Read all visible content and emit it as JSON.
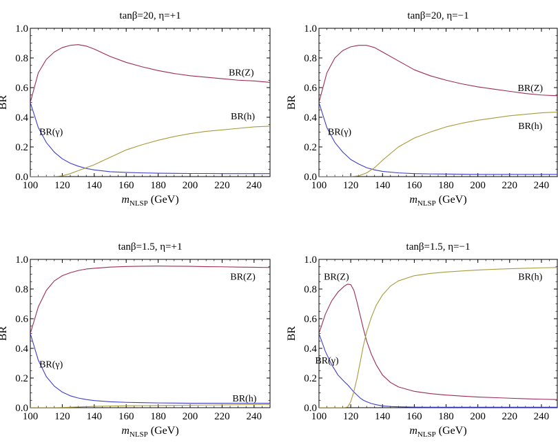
{
  "chart_data": [
    {
      "type": "line",
      "title": "tanβ=20,  η=+1",
      "ylabel": "BR",
      "xlabel_main": "m",
      "xlabel_sub": "NLSP",
      "xlabel_unit": " (GeV)",
      "xlim": [
        100,
        250
      ],
      "ylim": [
        0,
        1
      ],
      "xticks": [
        "100",
        "120",
        "140",
        "160",
        "180",
        "200",
        "220",
        "240"
      ],
      "yticks": [
        "0.0",
        "0.2",
        "0.4",
        "0.6",
        "0.8",
        "1.0"
      ],
      "x": [
        100,
        105,
        110,
        115,
        120,
        125,
        130,
        135,
        140,
        150,
        160,
        170,
        180,
        190,
        200,
        210,
        220,
        230,
        240,
        250
      ],
      "series": [
        {
          "name": "BR(Z)",
          "color": "#9c2a55",
          "values": [
            0.5,
            0.7,
            0.79,
            0.84,
            0.87,
            0.885,
            0.89,
            0.88,
            0.86,
            0.81,
            0.77,
            0.74,
            0.715,
            0.695,
            0.68,
            0.67,
            0.66,
            0.65,
            0.645,
            0.635
          ]
        },
        {
          "name": "BR(γ)",
          "color": "#3d3dc8",
          "values": [
            0.5,
            0.33,
            0.23,
            0.165,
            0.12,
            0.09,
            0.07,
            0.055,
            0.045,
            0.033,
            0.028,
            0.025,
            0.023,
            0.022,
            0.021,
            0.021,
            0.02,
            0.02,
            0.02,
            0.02
          ]
        },
        {
          "name": "BR(h)",
          "color": "#a89a3a",
          "values": [
            0.0,
            0.0,
            0.0,
            0.0,
            0.005,
            0.02,
            0.04,
            0.06,
            0.08,
            0.13,
            0.18,
            0.215,
            0.245,
            0.27,
            0.29,
            0.305,
            0.315,
            0.325,
            0.335,
            0.34
          ]
        }
      ],
      "annotations": [
        {
          "label": "BR(Z)",
          "x": 232,
          "y": 0.705
        },
        {
          "label": "BR(γ)",
          "x": 113,
          "y": 0.305
        },
        {
          "label": "BR(h)",
          "x": 233,
          "y": 0.41
        }
      ]
    },
    {
      "type": "line",
      "title": "tanβ=20,  η=−1",
      "ylabel": "BR",
      "xlabel_main": "m",
      "xlabel_sub": "NLSP",
      "xlabel_unit": " (GeV)",
      "xlim": [
        100,
        250
      ],
      "ylim": [
        0,
        1
      ],
      "xticks": [
        "100",
        "120",
        "140",
        "160",
        "180",
        "200",
        "220",
        "240"
      ],
      "yticks": [
        "0.0",
        "0.2",
        "0.4",
        "0.6",
        "0.8",
        "1.0"
      ],
      "x": [
        100,
        105,
        110,
        115,
        120,
        125,
        130,
        135,
        140,
        150,
        160,
        170,
        180,
        190,
        200,
        210,
        220,
        230,
        240,
        250
      ],
      "series": [
        {
          "name": "BR(Z)",
          "color": "#9c2a55",
          "values": [
            0.5,
            0.7,
            0.8,
            0.85,
            0.875,
            0.885,
            0.885,
            0.87,
            0.84,
            0.78,
            0.72,
            0.68,
            0.65,
            0.625,
            0.605,
            0.59,
            0.575,
            0.56,
            0.55,
            0.545
          ]
        },
        {
          "name": "BR(γ)",
          "color": "#3d3dc8",
          "values": [
            0.5,
            0.33,
            0.23,
            0.165,
            0.115,
            0.085,
            0.06,
            0.045,
            0.035,
            0.025,
            0.02,
            0.018,
            0.017,
            0.016,
            0.015,
            0.015,
            0.015,
            0.015,
            0.015,
            0.015
          ]
        },
        {
          "name": "BR(h)",
          "color": "#a89a3a",
          "values": [
            0.0,
            0.0,
            0.0,
            0.0,
            0.0,
            0.005,
            0.025,
            0.06,
            0.11,
            0.2,
            0.26,
            0.3,
            0.335,
            0.36,
            0.38,
            0.395,
            0.41,
            0.42,
            0.43,
            0.435
          ]
        }
      ],
      "annotations": [
        {
          "label": "BR(Z)",
          "x": 233,
          "y": 0.6
        },
        {
          "label": "BR(γ)",
          "x": 113,
          "y": 0.305
        },
        {
          "label": "BR(h)",
          "x": 233,
          "y": 0.345
        }
      ]
    },
    {
      "type": "line",
      "title": "tanβ=1.5,  η=+1",
      "ylabel": "BR",
      "xlabel_main": "m",
      "xlabel_sub": "NLSP",
      "xlabel_unit": " (GeV)",
      "xlim": [
        100,
        250
      ],
      "ylim": [
        0,
        1
      ],
      "xticks": [
        "100",
        "120",
        "140",
        "160",
        "180",
        "200",
        "220",
        "240"
      ],
      "yticks": [
        "0.0",
        "0.2",
        "0.4",
        "0.6",
        "0.8",
        "1.0"
      ],
      "x": [
        100,
        105,
        110,
        115,
        120,
        125,
        130,
        135,
        140,
        150,
        160,
        170,
        180,
        190,
        200,
        210,
        220,
        230,
        240,
        250
      ],
      "series": [
        {
          "name": "BR(Z)",
          "color": "#9c2a55",
          "values": [
            0.5,
            0.68,
            0.79,
            0.855,
            0.89,
            0.91,
            0.925,
            0.935,
            0.94,
            0.948,
            0.952,
            0.954,
            0.955,
            0.954,
            0.953,
            0.951,
            0.95,
            0.948,
            0.947,
            0.945
          ]
        },
        {
          "name": "BR(γ)",
          "color": "#3d3dc8",
          "values": [
            0.5,
            0.32,
            0.21,
            0.145,
            0.105,
            0.08,
            0.065,
            0.055,
            0.048,
            0.04,
            0.036,
            0.034,
            0.032,
            0.031,
            0.03,
            0.03,
            0.03,
            0.03,
            0.03,
            0.03
          ]
        },
        {
          "name": "BR(h)",
          "color": "#a89a3a",
          "values": [
            0.0,
            0.0,
            0.0,
            0.0,
            0.001,
            0.003,
            0.005,
            0.007,
            0.009,
            0.011,
            0.013,
            0.014,
            0.015,
            0.016,
            0.017,
            0.018,
            0.019,
            0.02,
            0.021,
            0.022
          ]
        }
      ],
      "annotations": [
        {
          "label": "BR(Z)",
          "x": 233,
          "y": 0.885
        },
        {
          "label": "BR(γ)",
          "x": 113,
          "y": 0.295
        },
        {
          "label": "BR(h)",
          "x": 234,
          "y": 0.065
        }
      ]
    },
    {
      "type": "line",
      "title": "tanβ=1.5,  η=−1",
      "ylabel": "BR",
      "xlabel_main": "m",
      "xlabel_sub": "NLSP",
      "xlabel_unit": " (GeV)",
      "xlim": [
        100,
        250
      ],
      "ylim": [
        0,
        1
      ],
      "xticks": [
        "100",
        "120",
        "140",
        "160",
        "180",
        "200",
        "220",
        "240"
      ],
      "yticks": [
        "0.0",
        "0.2",
        "0.4",
        "0.6",
        "0.8",
        "1.0"
      ],
      "x": [
        100,
        104,
        108,
        112,
        116,
        118,
        120,
        122,
        124,
        126,
        128,
        130,
        133,
        136,
        140,
        145,
        150,
        160,
        170,
        180,
        190,
        200,
        210,
        220,
        230,
        240,
        250
      ],
      "series": [
        {
          "name": "BR(Z)",
          "color": "#9c2a55",
          "values": [
            0.5,
            0.63,
            0.72,
            0.78,
            0.82,
            0.833,
            0.83,
            0.79,
            0.71,
            0.62,
            0.53,
            0.45,
            0.36,
            0.29,
            0.22,
            0.17,
            0.14,
            0.11,
            0.095,
            0.085,
            0.078,
            0.072,
            0.068,
            0.064,
            0.06,
            0.057,
            0.055
          ]
        },
        {
          "name": "BR(γ)",
          "color": "#3d3dc8",
          "values": [
            0.5,
            0.38,
            0.29,
            0.22,
            0.175,
            0.155,
            0.13,
            0.105,
            0.085,
            0.065,
            0.05,
            0.04,
            0.028,
            0.02,
            0.012,
            0.008,
            0.006,
            0.004,
            0.003,
            0.003,
            0.003,
            0.003,
            0.003,
            0.003,
            0.003,
            0.003,
            0.003
          ]
        },
        {
          "name": "BR(h)",
          "color": "#a89a3a",
          "values": [
            0.0,
            0.0,
            0.0,
            0.0,
            0.0,
            0.005,
            0.04,
            0.11,
            0.2,
            0.31,
            0.42,
            0.51,
            0.61,
            0.69,
            0.76,
            0.82,
            0.855,
            0.89,
            0.905,
            0.915,
            0.922,
            0.928,
            0.933,
            0.937,
            0.94,
            0.943,
            0.945
          ]
        }
      ],
      "annotations": [
        {
          "label": "BR(Z)",
          "x": 111,
          "y": 0.885
        },
        {
          "label": "BR(γ)",
          "x": 105,
          "y": 0.32
        },
        {
          "label": "BR(h)",
          "x": 233,
          "y": 0.885
        }
      ]
    }
  ]
}
